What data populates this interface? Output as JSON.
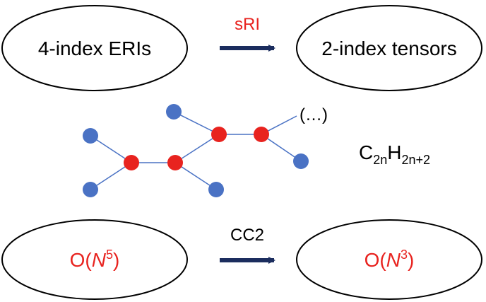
{
  "top": {
    "left_node": "4-index ERIs",
    "right_node": "2-index tensors",
    "arrow_label": "sRI"
  },
  "molecule": {
    "ellipsis": "(…)",
    "formula": {
      "c": "C",
      "c_sub": "2n",
      "h": "H",
      "h_sub": "2n+2"
    }
  },
  "bottom": {
    "left_node": {
      "prefix": "O(",
      "var": "N",
      "exp": "5",
      "suffix": ")"
    },
    "right_node": {
      "prefix": "O(",
      "var": "N",
      "exp": "3",
      "suffix": ")"
    },
    "arrow_label": "CC2"
  },
  "colors": {
    "accent_red": "#e8231f",
    "arrow_navy": "#1b2d5e",
    "atom_carbon": "#e8231f",
    "atom_hydrogen": "#4a72c4",
    "bond": "#4a72c4"
  }
}
